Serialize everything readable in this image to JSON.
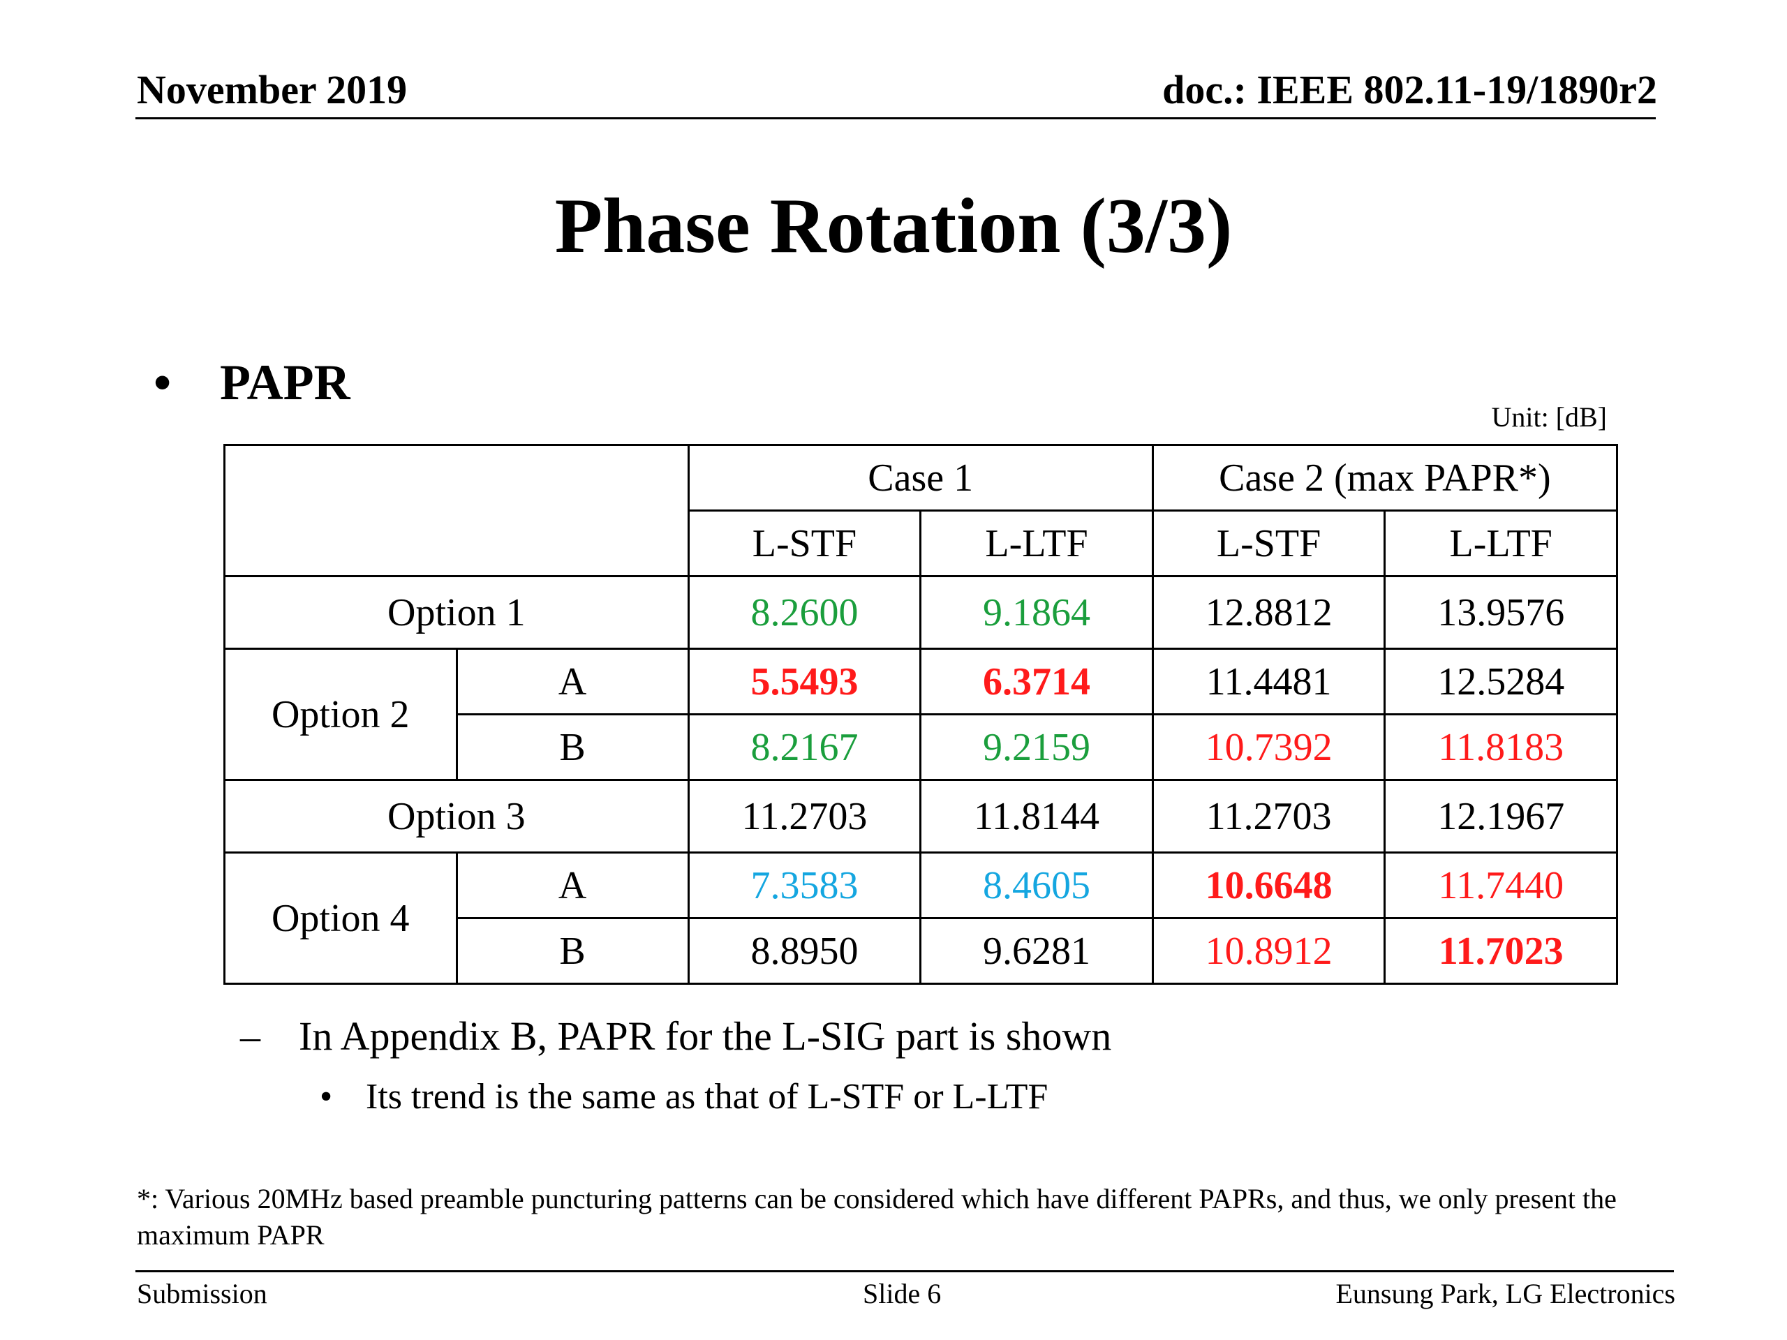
{
  "header": {
    "date": "November 2019",
    "doc": "doc.: IEEE 802.11-19/1890r2"
  },
  "title": "Phase Rotation (3/3)",
  "bullet": {
    "symbol": "•",
    "label": "PAPR"
  },
  "unit": "Unit: [dB]",
  "table": {
    "group_headers": [
      "Case 1",
      "Case 2 (max PAPR*)"
    ],
    "sub_headers": [
      "L-STF",
      "L-LTF",
      "L-STF",
      "L-LTF"
    ],
    "rows": {
      "option1": {
        "label": "Option 1",
        "values": [
          "8.2600",
          "9.1864",
          "12.8812",
          "13.9576"
        ]
      },
      "option2": {
        "label": "Option 2",
        "a": {
          "label": "A",
          "values": [
            "5.5493",
            "6.3714",
            "11.4481",
            "12.5284"
          ]
        },
        "b": {
          "label": "B",
          "values": [
            "8.2167",
            "9.2159",
            "10.7392",
            "11.8183"
          ]
        }
      },
      "option3": {
        "label": "Option 3",
        "values": [
          "11.2703",
          "11.8144",
          "11.2703",
          "12.1967"
        ]
      },
      "option4": {
        "label": "Option 4",
        "a": {
          "label": "A",
          "values": [
            "7.3583",
            "8.4605",
            "10.6648",
            "11.7440"
          ]
        },
        "b": {
          "label": "B",
          "values": [
            "8.8950",
            "9.6281",
            "10.8912",
            "11.7023"
          ]
        }
      }
    },
    "colors": {
      "green": "#1a9e3c",
      "red": "#ff1a1a",
      "cyan": "#14a6e0"
    }
  },
  "sub_bullet": {
    "symbol": "–",
    "text": "In Appendix B, PAPR for the L-SIG part is shown"
  },
  "sub_sub_bullet": {
    "symbol": "•",
    "text": "Its trend is the same as that of L-STF or L-LTF"
  },
  "footnote": "*: Various 20MHz based preamble puncturing patterns can be considered which have different PAPRs, and thus, we only present the maximum PAPR",
  "footer": {
    "left": "Submission",
    "center": "Slide 6",
    "right": "Eunsung Park, LG Electronics"
  }
}
